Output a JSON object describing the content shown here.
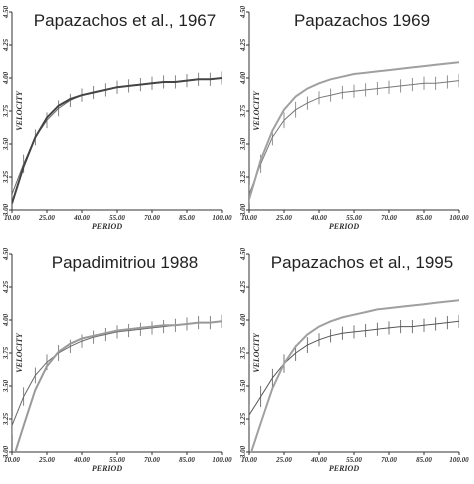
{
  "chart_data": [
    {
      "type": "line",
      "title": "Papazachos et al., 1967",
      "xlabel": "PERIOD",
      "ylabel": "VELOCITY",
      "xlim": [
        10,
        100
      ],
      "xticks": [
        {
          "value": 10,
          "label": "10.00"
        },
        {
          "value": 25,
          "label": "25.00"
        },
        {
          "value": 40,
          "label": "40.00"
        },
        {
          "value": 55,
          "label": "55.00"
        },
        {
          "value": 70,
          "label": "70.00"
        },
        {
          "value": 85,
          "label": "85.00"
        },
        {
          "value": 100,
          "label": "100.00"
        }
      ],
      "ylim": [
        3.0,
        4.5
      ],
      "yticks": [
        {
          "value": 3.0,
          "label": "3.00"
        },
        {
          "value": 3.25,
          "label": "3.25"
        },
        {
          "value": 3.5,
          "label": "3.50"
        },
        {
          "value": 3.75,
          "label": "3.75"
        },
        {
          "value": 4.0,
          "label": "4.00"
        },
        {
          "value": 4.25,
          "label": "4.25"
        },
        {
          "value": 4.5,
          "label": "4.50"
        }
      ],
      "x": [
        10,
        15,
        20,
        25,
        30,
        35,
        40,
        45,
        50,
        55,
        60,
        65,
        70,
        75,
        80,
        85,
        90,
        95,
        100
      ],
      "series": [
        {
          "color": "#666666",
          "values": [
            3.12,
            3.35,
            3.55,
            3.68,
            3.77,
            3.83,
            3.87,
            3.89,
            3.91,
            3.93,
            3.94,
            3.95,
            3.96,
            3.97,
            3.97,
            3.98,
            3.99,
            3.99,
            4.0
          ],
          "errors": [
            0.07,
            0.07,
            0.06,
            0.06,
            0.06,
            0.05,
            0.05,
            0.05,
            0.05,
            0.05,
            0.05,
            0.05,
            0.05,
            0.05,
            0.05,
            0.05,
            0.05,
            0.05,
            0.05
          ]
        },
        {
          "color": "#444444",
          "values": [
            3.05,
            3.33,
            3.55,
            3.7,
            3.79,
            3.84,
            3.87,
            3.89,
            3.91,
            3.93,
            3.94,
            3.95,
            3.96,
            3.97,
            3.97,
            3.98,
            3.99,
            3.99,
            4.0
          ]
        }
      ]
    },
    {
      "type": "line",
      "title": "Papazachos 1969",
      "xlabel": "PERIOD",
      "ylabel": "VELOCITY",
      "xlim": [
        10,
        100
      ],
      "xticks": [
        {
          "value": 10,
          "label": "10.00"
        },
        {
          "value": 25,
          "label": "25.00"
        },
        {
          "value": 40,
          "label": "40.00"
        },
        {
          "value": 55,
          "label": "55.00"
        },
        {
          "value": 70,
          "label": "70.00"
        },
        {
          "value": 85,
          "label": "85.00"
        },
        {
          "value": 100,
          "label": "100.00"
        }
      ],
      "ylim": [
        3.0,
        4.5
      ],
      "yticks": [
        {
          "value": 3.0,
          "label": "3.00"
        },
        {
          "value": 3.25,
          "label": "3.25"
        },
        {
          "value": 3.5,
          "label": "3.50"
        },
        {
          "value": 3.75,
          "label": "3.75"
        },
        {
          "value": 4.0,
          "label": "4.00"
        },
        {
          "value": 4.25,
          "label": "4.25"
        },
        {
          "value": 4.5,
          "label": "4.50"
        }
      ],
      "x": [
        10,
        15,
        20,
        25,
        30,
        35,
        40,
        45,
        50,
        55,
        60,
        65,
        70,
        75,
        80,
        85,
        90,
        95,
        100
      ],
      "series": [
        {
          "color": "#777777",
          "values": [
            3.12,
            3.35,
            3.55,
            3.68,
            3.76,
            3.81,
            3.85,
            3.87,
            3.89,
            3.9,
            3.91,
            3.92,
            3.93,
            3.94,
            3.95,
            3.96,
            3.96,
            3.97,
            3.98
          ],
          "errors": [
            0.07,
            0.07,
            0.06,
            0.06,
            0.06,
            0.05,
            0.05,
            0.05,
            0.05,
            0.05,
            0.05,
            0.05,
            0.05,
            0.05,
            0.05,
            0.05,
            0.05,
            0.05,
            0.05
          ]
        },
        {
          "color": "#a0a0a0",
          "values": [
            3.08,
            3.38,
            3.6,
            3.76,
            3.86,
            3.92,
            3.96,
            3.99,
            4.01,
            4.03,
            4.04,
            4.05,
            4.06,
            4.07,
            4.08,
            4.09,
            4.1,
            4.11,
            4.12
          ]
        }
      ]
    },
    {
      "type": "line",
      "title": "Papadimitriou 1988",
      "xlabel": "PERIOD",
      "ylabel": "VELOCITY",
      "xlim": [
        10,
        100
      ],
      "xticks": [
        {
          "value": 10,
          "label": "10.00"
        },
        {
          "value": 25,
          "label": "25.00"
        },
        {
          "value": 40,
          "label": "40.00"
        },
        {
          "value": 55,
          "label": "55.00"
        },
        {
          "value": 70,
          "label": "70.00"
        },
        {
          "value": 85,
          "label": "85.00"
        },
        {
          "value": 100,
          "label": "100.00"
        }
      ],
      "ylim": [
        3.0,
        4.5
      ],
      "yticks": [
        {
          "value": 3.0,
          "label": "3.00"
        },
        {
          "value": 3.25,
          "label": "3.25"
        },
        {
          "value": 3.5,
          "label": "3.50"
        },
        {
          "value": 3.75,
          "label": "3.75"
        },
        {
          "value": 4.0,
          "label": "4.00"
        },
        {
          "value": 4.25,
          "label": "4.25"
        },
        {
          "value": 4.5,
          "label": "4.50"
        }
      ],
      "x": [
        10,
        15,
        20,
        25,
        30,
        35,
        40,
        45,
        50,
        55,
        60,
        65,
        70,
        75,
        80,
        85,
        90,
        95,
        100
      ],
      "series": [
        {
          "color": "#666666",
          "values": [
            3.2,
            3.42,
            3.58,
            3.68,
            3.75,
            3.8,
            3.84,
            3.87,
            3.89,
            3.91,
            3.92,
            3.93,
            3.94,
            3.95,
            3.96,
            3.97,
            3.98,
            3.98,
            3.99
          ],
          "errors": [
            0.07,
            0.07,
            0.06,
            0.06,
            0.06,
            0.05,
            0.05,
            0.05,
            0.05,
            0.05,
            0.05,
            0.05,
            0.05,
            0.05,
            0.05,
            0.05,
            0.05,
            0.05,
            0.05
          ]
        },
        {
          "color": "#999999",
          "values": [
            2.92,
            3.2,
            3.47,
            3.65,
            3.76,
            3.82,
            3.86,
            3.88,
            3.9,
            3.92,
            3.93,
            3.94,
            3.95,
            3.96,
            3.96,
            3.97,
            3.98,
            3.98,
            3.99
          ]
        }
      ]
    },
    {
      "type": "line",
      "title": "Papazachos et al., 1995",
      "xlabel": "PERIOD",
      "ylabel": "VELOCITY",
      "xlim": [
        10,
        100
      ],
      "xticks": [
        {
          "value": 10,
          "label": "10.00"
        },
        {
          "value": 25,
          "label": "25.00"
        },
        {
          "value": 40,
          "label": "40.00"
        },
        {
          "value": 55,
          "label": "55.00"
        },
        {
          "value": 70,
          "label": "70.00"
        },
        {
          "value": 85,
          "label": "85.00"
        },
        {
          "value": 100,
          "label": "100.00"
        }
      ],
      "ylim": [
        3.0,
        4.5
      ],
      "yticks": [
        {
          "value": 3.0,
          "label": "3.00"
        },
        {
          "value": 3.25,
          "label": "3.25"
        },
        {
          "value": 3.5,
          "label": "3.50"
        },
        {
          "value": 3.75,
          "label": "3.75"
        },
        {
          "value": 4.0,
          "label": "4.00"
        },
        {
          "value": 4.25,
          "label": "4.25"
        },
        {
          "value": 4.5,
          "label": "4.50"
        }
      ],
      "x": [
        10,
        15,
        20,
        25,
        30,
        35,
        40,
        45,
        50,
        55,
        60,
        65,
        70,
        75,
        80,
        85,
        90,
        95,
        100
      ],
      "series": [
        {
          "color": "#555555",
          "values": [
            3.28,
            3.42,
            3.56,
            3.67,
            3.75,
            3.81,
            3.85,
            3.88,
            3.9,
            3.91,
            3.92,
            3.93,
            3.94,
            3.95,
            3.95,
            3.96,
            3.97,
            3.98,
            3.99
          ],
          "errors": [
            0.08,
            0.08,
            0.07,
            0.07,
            0.06,
            0.06,
            0.05,
            0.05,
            0.05,
            0.05,
            0.05,
            0.05,
            0.05,
            0.05,
            0.05,
            0.05,
            0.05,
            0.05,
            0.05
          ]
        },
        {
          "color": "#a0a0a0",
          "values": [
            2.95,
            3.22,
            3.48,
            3.67,
            3.8,
            3.89,
            3.95,
            3.99,
            4.02,
            4.04,
            4.06,
            4.08,
            4.09,
            4.1,
            4.11,
            4.12,
            4.13,
            4.14,
            4.15
          ]
        }
      ]
    }
  ]
}
